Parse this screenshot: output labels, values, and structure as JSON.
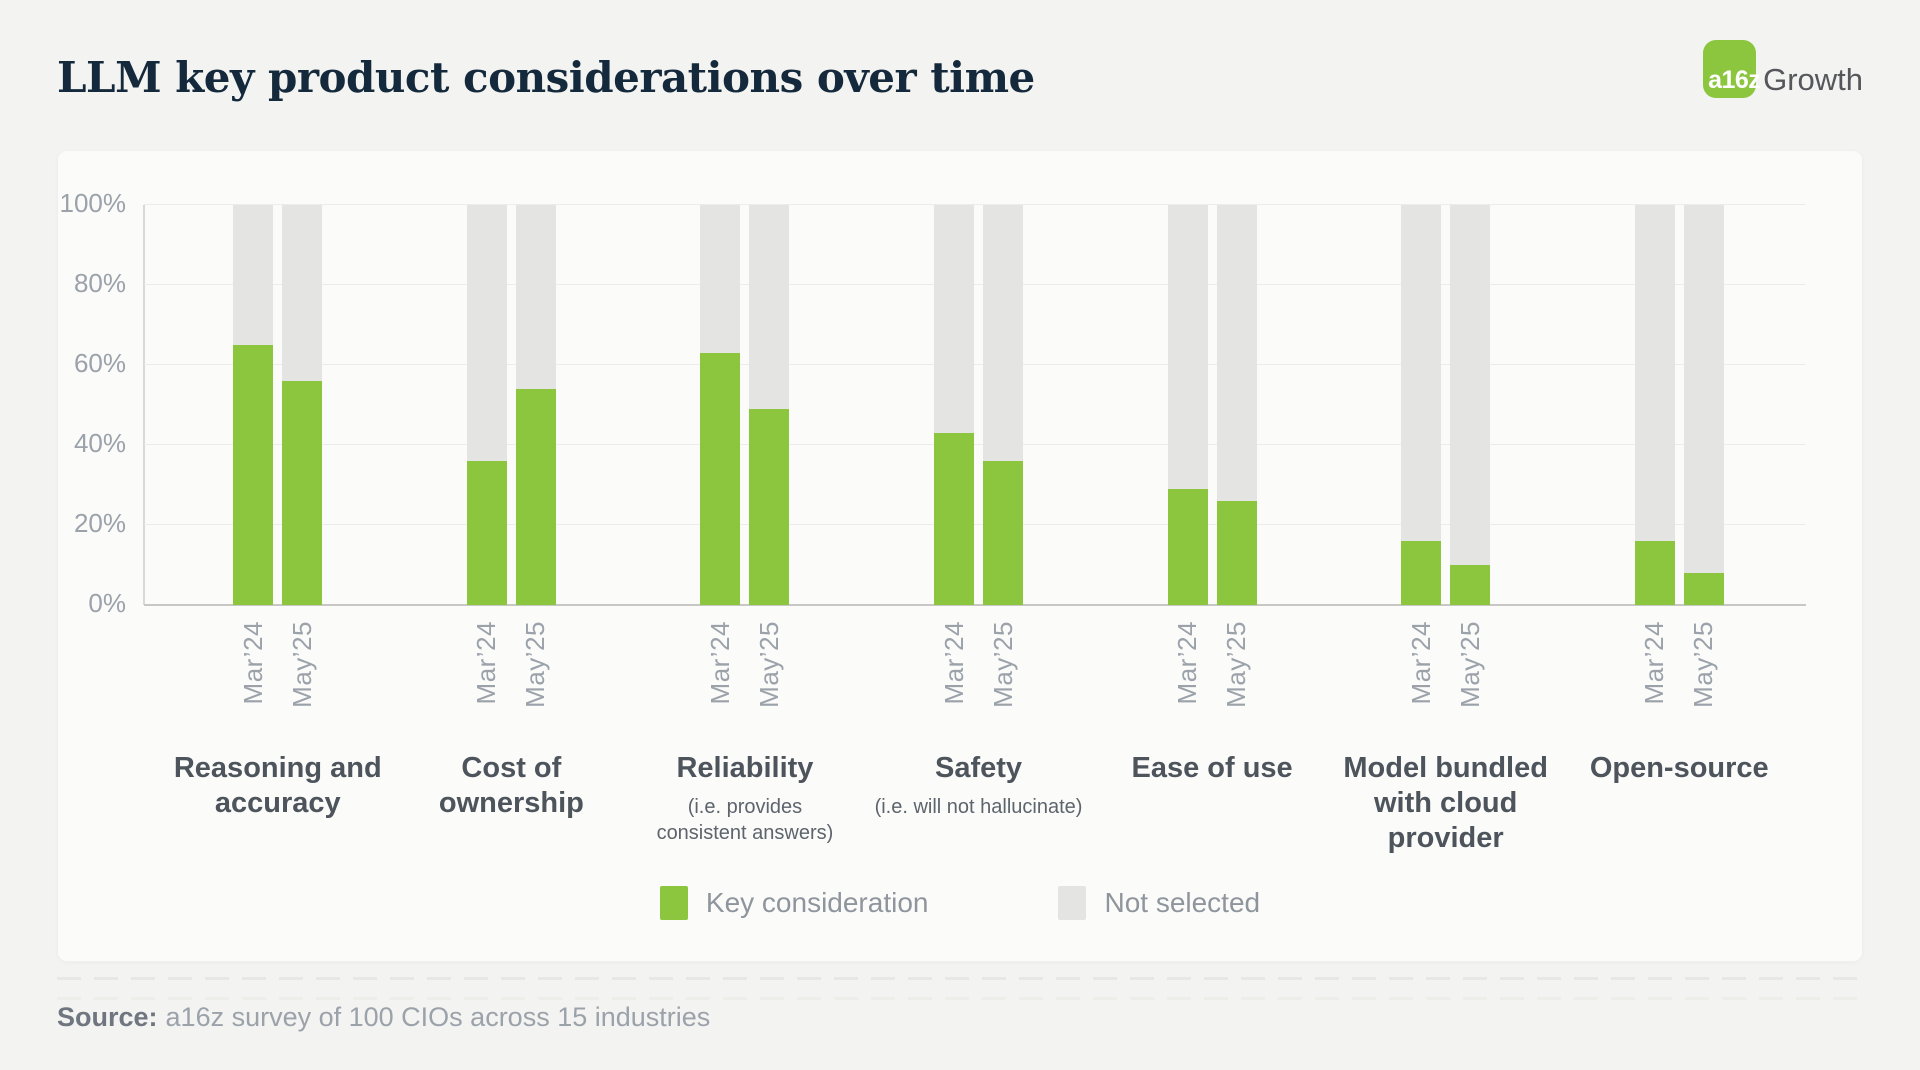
{
  "header": {
    "title": "LLM key product considerations over time",
    "logo": {
      "mark_text": "a16z",
      "suffix_text": "Growth",
      "mark_color": "#8CC63E"
    }
  },
  "chart_data": {
    "type": "bar",
    "stacked": true,
    "stack_total": 100,
    "title": "LLM key product considerations over time",
    "grid": true,
    "ylim": [
      0,
      100
    ],
    "y_axis": {
      "max": 100,
      "ticks": [
        {
          "label": "100%",
          "value": 100
        },
        {
          "label": "80%",
          "value": 80
        },
        {
          "label": "60%",
          "value": 60
        },
        {
          "label": "40%",
          "value": 40
        },
        {
          "label": "20%",
          "value": 20
        },
        {
          "label": "0%",
          "value": 0
        }
      ]
    },
    "categories": [
      {
        "label": "Reasoning and accuracy",
        "label_lines": [
          "Reasoning and",
          "accuracy"
        ],
        "subtitle_lines": []
      },
      {
        "label": "Cost of ownership",
        "label_lines": [
          "Cost of",
          "ownership"
        ],
        "subtitle_lines": []
      },
      {
        "label": "Reliability",
        "label_lines": [
          "Reliability"
        ],
        "subtitle_lines": [
          "(i.e. provides",
          "consistent answers)"
        ]
      },
      {
        "label": "Safety",
        "label_lines": [
          "Safety"
        ],
        "subtitle_lines": [
          "(i.e. will not hallucinate)"
        ]
      },
      {
        "label": "Ease of use",
        "label_lines": [
          "Ease of use"
        ],
        "subtitle_lines": []
      },
      {
        "label": "Model bundled with cloud provider",
        "label_lines": [
          "Model bundled",
          "with cloud",
          "provider"
        ],
        "subtitle_lines": []
      },
      {
        "label": "Open-source",
        "label_lines": [
          "Open-source"
        ],
        "subtitle_lines": []
      }
    ],
    "series": [
      {
        "name": "Mar’24",
        "key_consideration_pct": [
          65,
          36,
          63,
          43,
          29,
          16,
          16
        ]
      },
      {
        "name": "May’25",
        "key_consideration_pct": [
          56,
          54,
          49,
          36,
          26,
          10,
          8
        ]
      }
    ],
    "legend": [
      {
        "label": "Key consideration",
        "color": "#8CC63E"
      },
      {
        "label": "Not selected",
        "color": "#E4E4E3"
      }
    ],
    "legend_position": "bottom-center"
  },
  "footer": {
    "source_label": "Source:",
    "source_text": "a16z survey of 100 CIOs across 15 industries"
  }
}
